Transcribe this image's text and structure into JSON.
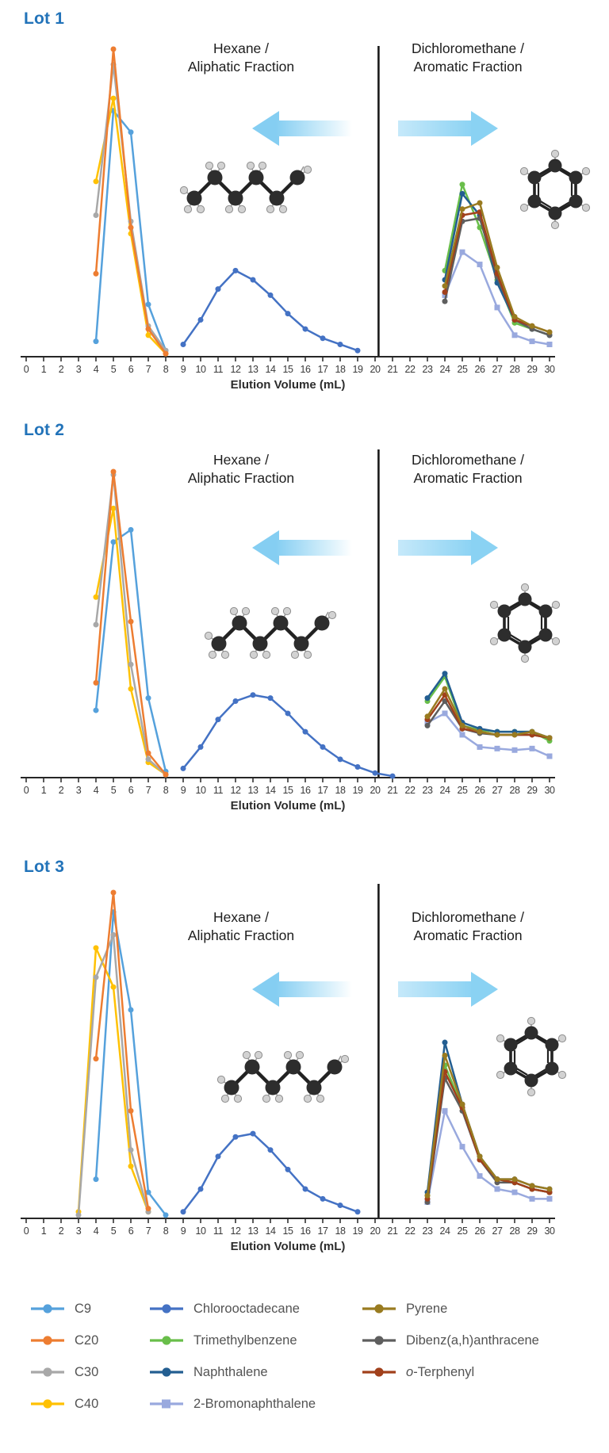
{
  "page": {
    "background": "#ffffff"
  },
  "axis": {
    "title": "Elution Volume (mL)",
    "x_ticks": [
      0,
      1,
      2,
      3,
      4,
      5,
      6,
      7,
      8,
      9,
      10,
      11,
      12,
      13,
      14,
      15,
      16,
      17,
      18,
      19,
      20,
      21,
      22,
      23,
      24,
      25,
      26,
      27,
      28,
      29,
      30
    ]
  },
  "fractions": {
    "left_line1": "Hexane /",
    "left_line2": "Aliphatic Fraction",
    "right_line1": "Dichloromethane /",
    "right_line2": "Aromatic Fraction",
    "arrow_color": "#85CEF2"
  },
  "series_styles": {
    "c9": {
      "label": "C9",
      "color": "#55A1DC",
      "marker": "circle"
    },
    "c20": {
      "label": "C20",
      "color": "#ED7D31",
      "marker": "circle"
    },
    "c30": {
      "label": "C30",
      "color": "#A8A8A8",
      "marker": "circle"
    },
    "c40": {
      "label": "C40",
      "color": "#FFC103",
      "marker": "circle"
    },
    "chloro": {
      "label": "Chlorooctadecane",
      "color": "#4472C4",
      "marker": "circle"
    },
    "tmb": {
      "label": "Trimethylbenzene",
      "color": "#69BE4A",
      "marker": "circle"
    },
    "naph": {
      "label": "Naphthalene",
      "color": "#235E91",
      "marker": "circle"
    },
    "brnaph": {
      "label": "2-Bromonaphthalene",
      "color": "#99A9DE",
      "marker": "square"
    },
    "pyr": {
      "label": "Pyrene",
      "color": "#997B20",
      "marker": "circle"
    },
    "dba": {
      "label": "Dibenz(a,h)anthracene",
      "color": "#5E5E5E",
      "marker": "circle"
    },
    "oter": {
      "label": "o-Terphenyl",
      "color": "#A1401B",
      "marker": "circle",
      "italic_first": true
    }
  },
  "legend_columns": [
    [
      "c9",
      "c20",
      "c30",
      "c40"
    ],
    [
      "chloro",
      "tmb",
      "naph",
      "brnaph"
    ],
    [
      "pyr",
      "dba",
      "oter"
    ]
  ],
  "chart_data": [
    {
      "type": "line",
      "title": "Lot 1",
      "xlabel": "Elution Volume (mL)",
      "xlim": [
        0,
        30
      ],
      "ylim": [
        0,
        105
      ],
      "y_scale_note": "no y-axis drawn; values are relative peak heights 0-100",
      "divider_x": 20.2,
      "left_region_label": "Hexane / Aliphatic Fraction",
      "right_region_label": "Dichloromethane / Aromatic Fraction",
      "series": [
        {
          "id": "c9",
          "name": "C9",
          "x": [
            4,
            5,
            6,
            7,
            8
          ],
          "y": [
            5,
            80,
            73,
            17,
            2
          ]
        },
        {
          "id": "c40",
          "name": "C40",
          "x": [
            4,
            5,
            6,
            7,
            8
          ],
          "y": [
            57,
            84,
            40,
            7,
            1
          ]
        },
        {
          "id": "c30",
          "name": "C30",
          "x": [
            4,
            5,
            6,
            7,
            8
          ],
          "y": [
            46,
            95,
            44,
            10,
            2
          ]
        },
        {
          "id": "c20",
          "name": "C20",
          "x": [
            4,
            5,
            6,
            7,
            8
          ],
          "y": [
            27,
            100,
            42,
            9,
            1
          ]
        },
        {
          "id": "chloro",
          "name": "Chlorooctadecane",
          "x": [
            9,
            10,
            11,
            12,
            13,
            14,
            15,
            16,
            17,
            18,
            19
          ],
          "y": [
            4,
            12,
            22,
            28,
            25,
            20,
            14,
            9,
            6,
            4,
            2
          ]
        },
        {
          "id": "brnaph",
          "name": "2-Bromonaphthalene",
          "x": [
            24,
            25,
            26,
            27,
            28,
            29,
            30
          ],
          "y": [
            20,
            34,
            30,
            16,
            7,
            5,
            4
          ]
        },
        {
          "id": "tmb",
          "name": "Trimethylbenzene",
          "x": [
            24,
            25,
            26,
            27,
            28,
            29,
            30
          ],
          "y": [
            28,
            56,
            42,
            25,
            11,
            9,
            7
          ]
        },
        {
          "id": "naph",
          "name": "Naphthalene",
          "x": [
            24,
            25,
            26,
            27,
            28,
            29,
            30
          ],
          "y": [
            25,
            53,
            46,
            24,
            12,
            9,
            7
          ]
        },
        {
          "id": "dba",
          "name": "Dibenz(a,h)anthracene",
          "x": [
            24,
            25,
            26,
            27,
            28,
            29,
            30
          ],
          "y": [
            18,
            44,
            45,
            26,
            12,
            9,
            7
          ]
        },
        {
          "id": "oter",
          "name": "o-Terphenyl",
          "x": [
            24,
            25,
            26,
            27,
            28,
            29,
            30
          ],
          "y": [
            21,
            46,
            47,
            27,
            12,
            10,
            8
          ]
        },
        {
          "id": "pyr",
          "name": "Pyrene",
          "x": [
            24,
            25,
            26,
            27,
            28,
            29,
            30
          ],
          "y": [
            23,
            48,
            50,
            29,
            13,
            10,
            8
          ]
        }
      ]
    },
    {
      "type": "line",
      "title": "Lot 2",
      "xlabel": "Elution Volume (mL)",
      "xlim": [
        0,
        30
      ],
      "ylim": [
        0,
        105
      ],
      "y_scale_note": "no y-axis drawn; values are relative peak heights 0-100",
      "divider_x": 20.2,
      "left_region_label": "Hexane / Aliphatic Fraction",
      "right_region_label": "Dichloromethane / Aromatic Fraction",
      "series": [
        {
          "id": "c9",
          "name": "C9",
          "x": [
            4,
            5,
            6,
            7,
            8
          ],
          "y": [
            22,
            77,
            81,
            26,
            2
          ]
        },
        {
          "id": "c40",
          "name": "C40",
          "x": [
            4,
            5,
            6,
            7,
            8
          ],
          "y": [
            59,
            88,
            29,
            5,
            1
          ]
        },
        {
          "id": "c30",
          "name": "C30",
          "x": [
            4,
            5,
            6,
            7,
            8
          ],
          "y": [
            50,
            99,
            37,
            6,
            1
          ]
        },
        {
          "id": "c20",
          "name": "C20",
          "x": [
            4,
            5,
            6,
            7,
            8
          ],
          "y": [
            31,
            100,
            51,
            8,
            1
          ]
        },
        {
          "id": "chloro",
          "name": "Chlorooctadecane",
          "x": [
            9,
            10,
            11,
            12,
            13,
            14,
            15,
            16,
            17,
            18,
            19,
            20,
            21
          ],
          "y": [
            3,
            10,
            19,
            25,
            27,
            26,
            21,
            15,
            10,
            6,
            3.5,
            1.5,
            0.5
          ]
        },
        {
          "id": "brnaph",
          "name": "2-Bromonaphthalene",
          "x": [
            23,
            24,
            25,
            26,
            27,
            28,
            29,
            30
          ],
          "y": [
            18,
            21,
            14,
            10,
            9.5,
            9,
            9.5,
            7
          ]
        },
        {
          "id": "tmb",
          "name": "Trimethylbenzene",
          "x": [
            23,
            24,
            25,
            26,
            27,
            28,
            29,
            30
          ],
          "y": [
            25,
            33,
            17,
            15.5,
            15,
            15,
            15,
            12
          ]
        },
        {
          "id": "naph",
          "name": "Naphthalene",
          "x": [
            23,
            24,
            25,
            26,
            27,
            28,
            29,
            30
          ],
          "y": [
            26,
            34,
            18,
            16,
            15,
            15,
            15,
            13
          ]
        },
        {
          "id": "dba",
          "name": "Dibenz(a,h)anthracene",
          "x": [
            23,
            24,
            25,
            26,
            27,
            28,
            29,
            30
          ],
          "y": [
            17,
            25,
            16,
            14.5,
            14,
            14,
            14,
            13
          ]
        },
        {
          "id": "oter",
          "name": "o-Terphenyl",
          "x": [
            23,
            24,
            25,
            26,
            27,
            28,
            29,
            30
          ],
          "y": [
            19,
            27,
            16,
            15,
            14,
            14,
            14,
            13
          ]
        },
        {
          "id": "pyr",
          "name": "Pyrene",
          "x": [
            23,
            24,
            25,
            26,
            27,
            28,
            29,
            30
          ],
          "y": [
            20,
            29,
            17,
            15,
            14,
            14,
            15,
            13
          ]
        }
      ]
    },
    {
      "type": "line",
      "title": "Lot 3",
      "xlabel": "Elution Volume (mL)",
      "xlim": [
        0,
        30
      ],
      "ylim": [
        0,
        105
      ],
      "y_scale_note": "no y-axis drawn; values are relative peak heights 0-100",
      "divider_x": 20.2,
      "left_region_label": "Hexane / Aliphatic Fraction",
      "right_region_label": "Dichloromethane / Aromatic Fraction",
      "series": [
        {
          "id": "c9",
          "name": "C9",
          "x": [
            4,
            5,
            6,
            7,
            8
          ],
          "y": [
            12,
            94,
            64,
            8,
            1
          ]
        },
        {
          "id": "c40",
          "name": "C40",
          "x": [
            3,
            4,
            5,
            6,
            7
          ],
          "y": [
            2,
            83,
            71,
            16,
            2
          ]
        },
        {
          "id": "c30",
          "name": "C30",
          "x": [
            3,
            4,
            5,
            6,
            7
          ],
          "y": [
            1,
            74,
            87,
            21,
            2
          ]
        },
        {
          "id": "c20",
          "name": "C20",
          "x": [
            4,
            5,
            6,
            7
          ],
          "y": [
            49,
            100,
            33,
            3
          ]
        },
        {
          "id": "chloro",
          "name": "Chlorooctadecane",
          "x": [
            9,
            10,
            11,
            12,
            13,
            14,
            15,
            16,
            17,
            18,
            19
          ],
          "y": [
            2,
            9,
            19,
            25,
            26,
            21,
            15,
            9,
            6,
            4,
            2
          ]
        },
        {
          "id": "brnaph",
          "name": "2-Bromonaphthalene",
          "x": [
            23,
            24,
            25,
            26,
            27,
            28,
            29,
            30
          ],
          "y": [
            5,
            33,
            22,
            13,
            9,
            8,
            6,
            6
          ]
        },
        {
          "id": "tmb",
          "name": "Trimethylbenzene",
          "x": [
            23,
            24,
            25,
            26,
            27,
            28,
            29,
            30
          ],
          "y": [
            7,
            47,
            34,
            19,
            12,
            11,
            9,
            8
          ]
        },
        {
          "id": "naph",
          "name": "Naphthalene",
          "x": [
            23,
            24,
            25,
            26,
            27,
            28,
            29,
            30
          ],
          "y": [
            8,
            54,
            35,
            19,
            12,
            12,
            10,
            9
          ]
        },
        {
          "id": "dba",
          "name": "Dibenz(a,h)anthracene",
          "x": [
            23,
            24,
            25,
            26,
            27,
            28,
            29,
            30
          ],
          "y": [
            5,
            43,
            33,
            18,
            11,
            11,
            9,
            8
          ]
        },
        {
          "id": "oter",
          "name": "o-Terphenyl",
          "x": [
            23,
            24,
            25,
            26,
            27,
            28,
            29,
            30
          ],
          "y": [
            6,
            45,
            34,
            18,
            12,
            11,
            9,
            8
          ]
        },
        {
          "id": "pyr",
          "name": "Pyrene",
          "x": [
            23,
            24,
            25,
            26,
            27,
            28,
            29,
            30
          ],
          "y": [
            7,
            50,
            35,
            19,
            12,
            12,
            10,
            9
          ]
        }
      ]
    }
  ]
}
